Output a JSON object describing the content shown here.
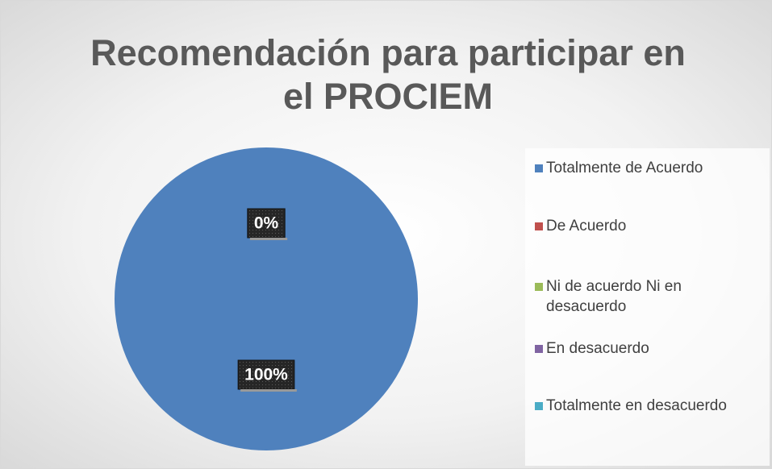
{
  "chart_data": {
    "type": "pie",
    "title": "Recomendación para participar en el PROCIEM",
    "categories": [
      "Totalmente de Acuerdo",
      "De Acuerdo",
      "Ni de acuerdo Ni en desacuerdo",
      "En desacuerdo",
      "Totalmente en desacuerdo"
    ],
    "values": [
      100,
      0,
      0,
      0,
      0
    ],
    "value_labels": [
      "100%",
      "0%",
      null,
      null,
      null
    ],
    "colors": [
      "#4f81bd",
      "#c0504d",
      "#9bbb59",
      "#8064a2",
      "#4bacc6"
    ],
    "legend": "right"
  }
}
